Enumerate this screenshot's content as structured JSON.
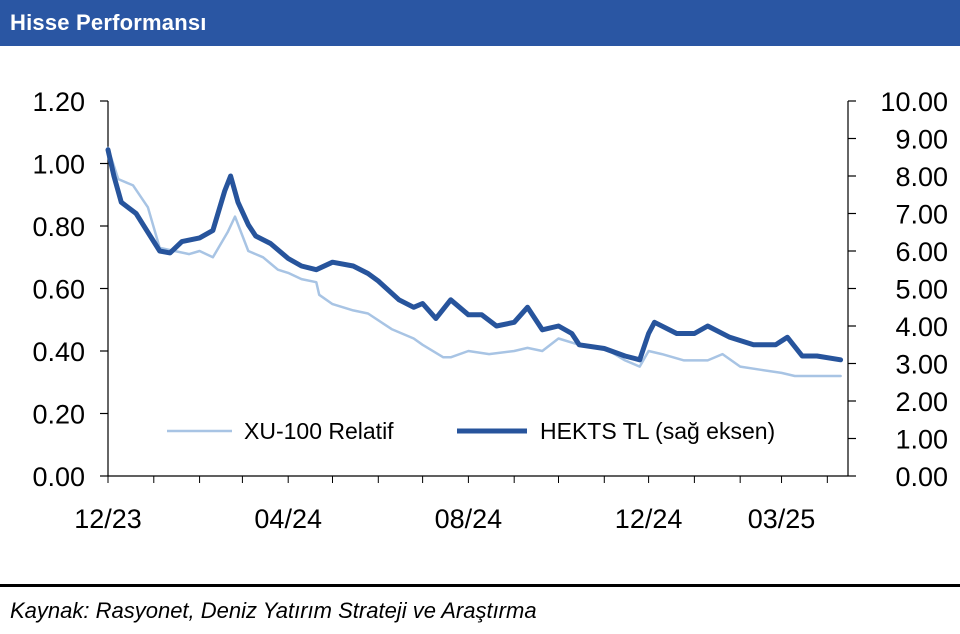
{
  "header": {
    "title": "Hisse Performansı"
  },
  "source": "Kaynak: Rasyonet, Deniz Yatırım Strateji ve Araştırma",
  "colors": {
    "header_bg": "#2a56a3",
    "xu100": "#a8c4e4",
    "hekts": "#27549c"
  },
  "chart_data": {
    "type": "line",
    "title": "",
    "x_tick_labels": [
      "12/23",
      "04/24",
      "08/24",
      "12/24",
      "03/25"
    ],
    "x_tick_positions": [
      "2023-12-01",
      "2024-04-01",
      "2024-08-01",
      "2024-12-01",
      "2025-03-01"
    ],
    "xlim": [
      "2023-12-01",
      "2025-04-15"
    ],
    "y_left": {
      "ylim": [
        0,
        1.2
      ],
      "ticks": [
        "0.00",
        "0.20",
        "0.40",
        "0.60",
        "0.80",
        "1.00",
        "1.20"
      ]
    },
    "y_right": {
      "ylim": [
        0,
        10
      ],
      "ticks": [
        "0.00",
        "1.00",
        "2.00",
        "3.00",
        "4.00",
        "5.00",
        "6.00",
        "7.00",
        "8.00",
        "9.00",
        "10.00"
      ]
    },
    "grid": false,
    "legend_placement": "bottom-center",
    "series": [
      {
        "name": "XU-100 Relatif",
        "axis": "left",
        "x": [
          "2023-12-01",
          "2023-12-08",
          "2023-12-18",
          "2023-12-28",
          "2024-01-05",
          "2024-01-15",
          "2024-01-25",
          "2024-02-01",
          "2024-02-10",
          "2024-02-20",
          "2024-02-25",
          "2024-03-05",
          "2024-03-15",
          "2024-03-20",
          "2024-03-25",
          "2024-04-01",
          "2024-04-10",
          "2024-04-20",
          "2024-04-22",
          "2024-05-01",
          "2024-05-15",
          "2024-05-25",
          "2024-06-10",
          "2024-06-25",
          "2024-07-01",
          "2024-07-15",
          "2024-07-20",
          "2024-08-01",
          "2024-08-15",
          "2024-09-01",
          "2024-09-10",
          "2024-09-20",
          "2024-10-01",
          "2024-10-15",
          "2024-11-01",
          "2024-11-15",
          "2024-11-25",
          "2024-12-01",
          "2024-12-10",
          "2024-12-25",
          "2025-01-10",
          "2025-01-20",
          "2025-02-01",
          "2025-02-15",
          "2025-03-01",
          "2025-03-10",
          "2025-03-25",
          "2025-04-10"
        ],
        "values": [
          1.05,
          0.95,
          0.93,
          0.86,
          0.73,
          0.72,
          0.71,
          0.72,
          0.7,
          0.78,
          0.83,
          0.72,
          0.7,
          0.68,
          0.66,
          0.65,
          0.63,
          0.62,
          0.58,
          0.55,
          0.53,
          0.52,
          0.47,
          0.44,
          0.42,
          0.38,
          0.38,
          0.4,
          0.39,
          0.4,
          0.41,
          0.4,
          0.44,
          0.42,
          0.41,
          0.37,
          0.35,
          0.4,
          0.39,
          0.37,
          0.37,
          0.39,
          0.35,
          0.34,
          0.33,
          0.32,
          0.32,
          0.32
        ]
      },
      {
        "name": "HEKTS TL (sağ eksen)",
        "axis": "right",
        "x": [
          "2023-12-01",
          "2023-12-05",
          "2023-12-10",
          "2023-12-20",
          "2023-12-28",
          "2024-01-05",
          "2024-01-12",
          "2024-01-20",
          "2024-02-01",
          "2024-02-10",
          "2024-02-18",
          "2024-02-22",
          "2024-02-27",
          "2024-03-05",
          "2024-03-10",
          "2024-03-20",
          "2024-04-01",
          "2024-04-10",
          "2024-04-20",
          "2024-05-01",
          "2024-05-15",
          "2024-05-25",
          "2024-06-01",
          "2024-06-15",
          "2024-06-25",
          "2024-07-01",
          "2024-07-10",
          "2024-07-20",
          "2024-08-01",
          "2024-08-10",
          "2024-08-20",
          "2024-09-01",
          "2024-09-10",
          "2024-09-20",
          "2024-10-01",
          "2024-10-10",
          "2024-10-15",
          "2024-11-01",
          "2024-11-15",
          "2024-11-25",
          "2024-12-01",
          "2024-12-05",
          "2024-12-20",
          "2025-01-01",
          "2025-01-10",
          "2025-01-25",
          "2025-02-10",
          "2025-02-25",
          "2025-03-01",
          "2025-03-05",
          "2025-03-15",
          "2025-03-25",
          "2025-04-10"
        ],
        "values": [
          8.7,
          8.0,
          7.3,
          7.0,
          6.5,
          6.0,
          5.95,
          6.25,
          6.35,
          6.55,
          7.6,
          8.0,
          7.3,
          6.7,
          6.4,
          6.2,
          5.8,
          5.6,
          5.5,
          5.7,
          5.6,
          5.4,
          5.2,
          4.7,
          4.5,
          4.6,
          4.2,
          4.7,
          4.3,
          4.3,
          4.0,
          4.1,
          4.5,
          3.9,
          4.0,
          3.8,
          3.5,
          3.4,
          3.2,
          3.1,
          3.8,
          4.1,
          3.8,
          3.8,
          4.0,
          3.7,
          3.5,
          3.5,
          3.6,
          3.7,
          3.2,
          3.2,
          3.1
        ]
      }
    ]
  }
}
